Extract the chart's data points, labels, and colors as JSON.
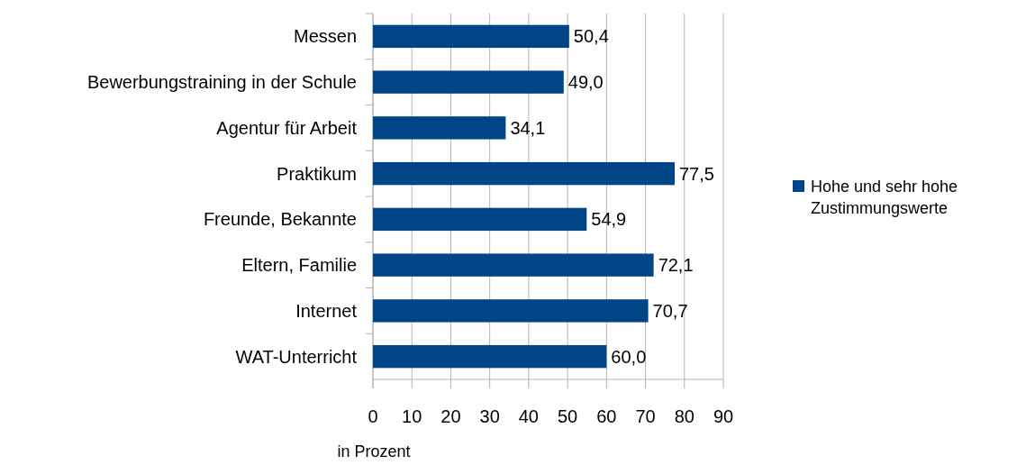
{
  "chart_data": {
    "type": "bar",
    "orientation": "horizontal",
    "xlabel": "in Prozent",
    "categories": [
      "Messen",
      "Bewerbungstraining in der Schule",
      "Agentur für Arbeit",
      "Praktikum",
      "Freunde, Bekannte",
      "Eltern, Familie",
      "Internet",
      "WAT-Unterricht"
    ],
    "series": [
      {
        "name": "Hohe und sehr hohe Zustimmungswerte",
        "color": "#004586",
        "values": [
          50.4,
          49.0,
          34.1,
          77.5,
          54.9,
          72.1,
          70.7,
          60.0
        ],
        "value_labels": [
          "50,4",
          "49,0",
          "34,1",
          "77,5",
          "54,9",
          "72,1",
          "70,7",
          "60,0"
        ]
      }
    ],
    "xlim": [
      0,
      90
    ],
    "xticks": [
      0,
      10,
      20,
      30,
      40,
      50,
      60,
      70,
      80,
      90
    ],
    "grid": "x",
    "legend": "right"
  }
}
